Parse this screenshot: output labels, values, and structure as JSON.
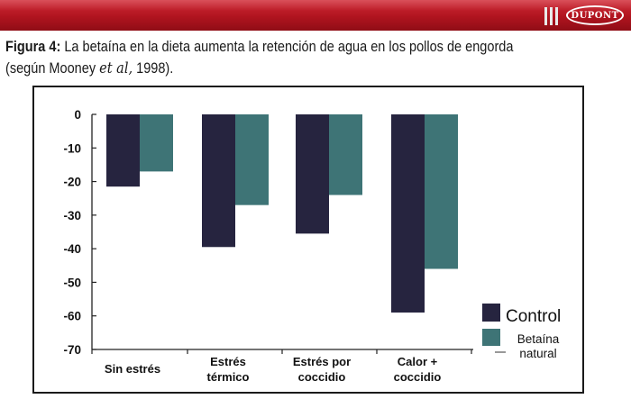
{
  "header": {
    "logo_text": "DUPONT",
    "bar_color": "#b0141f"
  },
  "caption": {
    "label": "Figura 4:",
    "text": " La betaína en la dieta aumenta la retención de agua en los pollos de engorda",
    "line2_prefix": "(según Mooney ",
    "line2_italic": "et al,",
    "line2_suffix": " 1998)."
  },
  "colors": {
    "control": "#26243f",
    "betaina": "#3e7476"
  },
  "chart_data": {
    "type": "bar",
    "categories": [
      [
        "Sin estrés"
      ],
      [
        "Estrés",
        "térmico"
      ],
      [
        "Estrés  por",
        "coccidio"
      ],
      [
        "Calor +",
        "coccidio"
      ]
    ],
    "series": [
      {
        "name": "Control",
        "values": [
          -21.5,
          -39.5,
          -35.5,
          -59
        ]
      },
      {
        "name": "Betaína natural",
        "values": [
          -17,
          -27,
          -24,
          -46
        ]
      }
    ],
    "legend": [
      {
        "label": "Control",
        "key": "control"
      },
      {
        "label": "Betaína\nnatural",
        "key": "betaina"
      }
    ],
    "ylim": [
      -70,
      0
    ],
    "yticks": [
      0,
      -10,
      -20,
      -30,
      -40,
      -50,
      -60,
      -70
    ],
    "xlabel": "",
    "ylabel": "",
    "legend_position": "bottom-right"
  }
}
